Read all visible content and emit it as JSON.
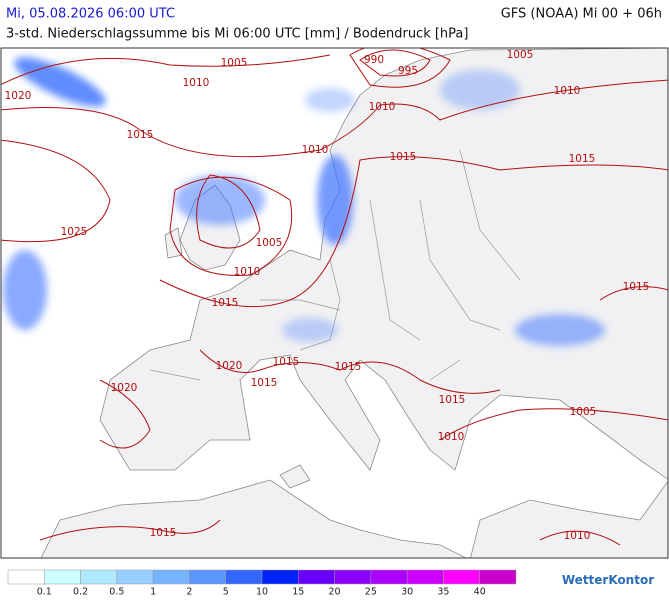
{
  "header": {
    "date": "Mi, 05.08.2026 06:00 UTC",
    "model": "GFS (NOAA) Mi 00 + 06h",
    "subtitle": "3-std. Niederschlagssumme bis Mi 06:00 UTC [mm] / Bodendruck [hPa]"
  },
  "isobar_labels": [
    "1005",
    "1010",
    "1020",
    "1015",
    "1010",
    "1025",
    "1005",
    "1010",
    "1015",
    "990",
    "995",
    "1005",
    "1010",
    "1010",
    "1015",
    "1015",
    "1015",
    "1020",
    "1015",
    "1015",
    "1015",
    "1020",
    "1015",
    "1010",
    "1005",
    "1015",
    "1010"
  ],
  "legend": {
    "labels": [
      "0.1",
      "0.2",
      "0.5",
      "1",
      "2",
      "5",
      "10",
      "15",
      "20",
      "25",
      "30",
      "35",
      "40"
    ],
    "colors": [
      "#ffffff",
      "#ccffff",
      "#b0e8ff",
      "#99ccff",
      "#77b4ff",
      "#5a96ff",
      "#3366ff",
      "#0022ff",
      "#6600ff",
      "#8a00ff",
      "#ac00ff",
      "#d000ff",
      "#ff00ff",
      "#cc00cc"
    ]
  },
  "logo": "WetterKontor"
}
